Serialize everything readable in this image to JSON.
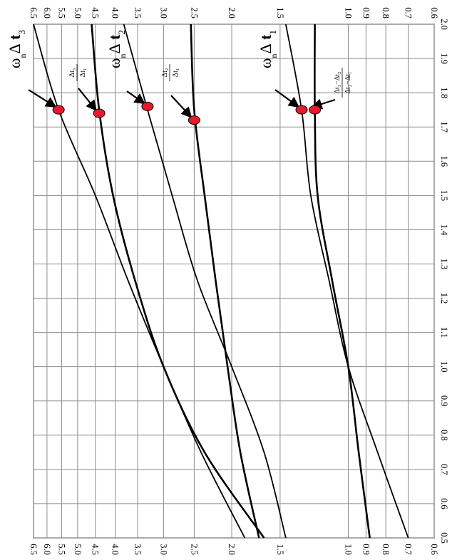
{
  "chart_data": {
    "type": "line",
    "orientation": "rotated-90-clockwise",
    "title": "",
    "xlabel": "",
    "ylabel": "",
    "grid": true,
    "x_ticks": [
      "0.5",
      "0.6",
      "0.7",
      "0.8",
      "0.9",
      "1.0",
      "1.1",
      "1.2",
      "1.3",
      "1.4",
      "1.5",
      "1.6",
      "1.7",
      "1.8",
      "1.9",
      "2.0"
    ],
    "xlim": [
      0.5,
      2.0
    ],
    "y_scale": "log",
    "ylim": [
      0.6,
      6.5
    ],
    "y_ticks": [
      "0.6",
      "0.7",
      "0.8",
      "0.9",
      "1.0",
      "1.5",
      "2.0",
      "2.5",
      "3.0",
      "3.5",
      "4.0",
      "4.5",
      "5.0",
      "5.5",
      "6.0",
      "6.5"
    ],
    "series": [
      {
        "name": "ω_n Δt_3",
        "x": [
          0.5,
          0.75,
          1.0,
          1.25,
          1.5,
          1.75,
          2.0
        ],
        "y": [
          1.85,
          2.4,
          3.0,
          3.7,
          4.5,
          5.6,
          6.5
        ],
        "stroke": 1.8
      },
      {
        "name": "Δt_3/Δt_1",
        "x": [
          0.5,
          0.75,
          1.0,
          1.25,
          1.5,
          1.75,
          2.0
        ],
        "y": [
          1.65,
          2.35,
          3.0,
          3.55,
          4.05,
          4.4,
          4.6
        ],
        "stroke": 2.6
      },
      {
        "name": "ω_n Δt_2",
        "x": [
          0.5,
          0.75,
          1.0,
          1.25,
          1.5,
          1.75,
          2.0
        ],
        "y": [
          1.45,
          1.65,
          2.0,
          2.45,
          2.85,
          3.3,
          3.8
        ],
        "stroke": 1.8
      },
      {
        "name": "Δt_2/Δt_1",
        "x": [
          0.5,
          0.75,
          1.0,
          1.25,
          1.5,
          1.75,
          2.0
        ],
        "y": [
          1.7,
          1.9,
          2.05,
          2.2,
          2.35,
          2.5,
          2.55
        ],
        "stroke": 2.6
      },
      {
        "name": "ω_n Δt_1",
        "x": [
          0.5,
          0.75,
          1.0,
          1.25,
          1.5,
          1.75,
          2.0
        ],
        "y": [
          0.7,
          0.84,
          1.0,
          1.12,
          1.25,
          1.32,
          1.45
        ],
        "stroke": 1.8
      },
      {
        "name": "(Δt_3−Δt_2)/(Δt_2−Δt_1)",
        "x": [
          0.5,
          0.75,
          1.0,
          1.25,
          1.5,
          1.75,
          2.0
        ],
        "y": [
          0.88,
          0.94,
          1.0,
          1.1,
          1.2,
          1.22,
          1.22
        ],
        "stroke": 2.6
      }
    ],
    "annotations": [
      {
        "id": "omega3",
        "omega": "ω",
        "sub_n": "n",
        "delta": "Δ",
        "t": "t",
        "sub": "3",
        "series": 0,
        "x": 1.75,
        "y": 5.6
      },
      {
        "id": "ratio31",
        "num": "Δt₃",
        "den": "Δt₁",
        "series": 1,
        "x": 1.74,
        "y": 4.4
      },
      {
        "id": "omega2",
        "omega": "ω",
        "sub_n": "n",
        "delta": "Δ",
        "t": "t",
        "sub": "2",
        "series": 2,
        "x": 1.76,
        "y": 3.3
      },
      {
        "id": "ratio21",
        "num": "Δt₂",
        "den": "Δt₁",
        "series": 3,
        "x": 1.72,
        "y": 2.5
      },
      {
        "id": "omega1",
        "omega": "ω",
        "sub_n": "n",
        "delta": "Δ",
        "t": "t",
        "sub": "1",
        "series": 4,
        "x": 1.75,
        "y": 1.32
      },
      {
        "id": "ratio3221",
        "num": "Δt₃−Δt₂",
        "den": "Δt₂−Δt₁",
        "series": 5,
        "x": 1.75,
        "y": 1.22
      }
    ],
    "colors": {
      "marker": "#e8192c",
      "grid": "#8c8c8c",
      "line": "#000000"
    }
  }
}
